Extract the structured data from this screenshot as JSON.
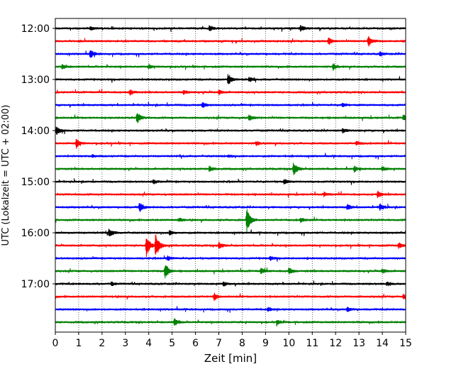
{
  "chart_data": {
    "type": "line",
    "xlabel": "Zeit  [min]",
    "ylabel": "UTC (Lokalzeit = UTC + 02:00)",
    "xlim": [
      0,
      15
    ],
    "x_ticks": [
      0,
      1,
      2,
      3,
      4,
      5,
      6,
      7,
      8,
      9,
      10,
      11,
      12,
      13,
      14,
      15
    ],
    "x_tick_labels": [
      "0",
      "1",
      "2",
      "3",
      "4",
      "5",
      "6",
      "7",
      "8",
      "9",
      "10",
      "11",
      "12",
      "13",
      "14",
      "15"
    ],
    "vertical_grid": "dotted",
    "y_ticks": [
      {
        "label": "12:00",
        "row": 0
      },
      {
        "label": "13:00",
        "row": 4
      },
      {
        "label": "14:00",
        "row": 8
      },
      {
        "label": "15:00",
        "row": 12
      },
      {
        "label": "16:00",
        "row": 16
      },
      {
        "label": "17:00",
        "row": 20
      }
    ],
    "row_colors": [
      "#000000",
      "#ff0000",
      "#0000ff",
      "#008000"
    ],
    "rows": [
      {
        "time": "12:00",
        "color": "black",
        "events": [
          {
            "t": 1.5,
            "a": 3
          },
          {
            "t": 6.6,
            "a": 4
          },
          {
            "t": 10.5,
            "a": 4
          }
        ]
      },
      {
        "time": "12:15",
        "color": "red",
        "events": [
          {
            "t": 11.7,
            "a": 5
          },
          {
            "t": 13.4,
            "a": 8
          }
        ]
      },
      {
        "time": "12:30",
        "color": "blue",
        "events": [
          {
            "t": 1.5,
            "a": 6
          },
          {
            "t": 13.9,
            "a": 3
          }
        ]
      },
      {
        "time": "12:45",
        "color": "green",
        "events": [
          {
            "t": 0.3,
            "a": 3
          },
          {
            "t": 4.0,
            "a": 3
          },
          {
            "t": 11.9,
            "a": 5
          }
        ]
      },
      {
        "time": "13:00",
        "color": "black",
        "events": [
          {
            "t": 7.4,
            "a": 8
          },
          {
            "t": 8.3,
            "a": 3
          }
        ]
      },
      {
        "time": "13:15",
        "color": "red",
        "events": [
          {
            "t": 3.2,
            "a": 4
          },
          {
            "t": 5.5,
            "a": 3
          },
          {
            "t": 7.0,
            "a": 3
          }
        ]
      },
      {
        "time": "13:30",
        "color": "blue",
        "events": [
          {
            "t": 6.3,
            "a": 4
          },
          {
            "t": 12.3,
            "a": 3
          }
        ]
      },
      {
        "time": "13:45",
        "color": "green",
        "events": [
          {
            "t": 3.5,
            "a": 8
          },
          {
            "t": 8.3,
            "a": 4
          },
          {
            "t": 14.9,
            "a": 4
          }
        ]
      },
      {
        "time": "14:00",
        "color": "black",
        "events": [
          {
            "t": 0.05,
            "a": 6
          },
          {
            "t": 12.3,
            "a": 3
          }
        ]
      },
      {
        "time": "14:15",
        "color": "red",
        "events": [
          {
            "t": 0.9,
            "a": 7
          },
          {
            "t": 8.6,
            "a": 3
          },
          {
            "t": 12.9,
            "a": 3
          }
        ]
      },
      {
        "time": "14:30",
        "color": "blue",
        "events": [
          {
            "t": 1.6,
            "a": 2
          },
          {
            "t": 7.4,
            "a": 2
          }
        ]
      },
      {
        "time": "14:45",
        "color": "green",
        "events": [
          {
            "t": 6.6,
            "a": 4
          },
          {
            "t": 10.2,
            "a": 10
          },
          {
            "t": 12.8,
            "a": 4
          },
          {
            "t": 14.0,
            "a": 3
          }
        ]
      },
      {
        "time": "15:00",
        "color": "black",
        "events": [
          {
            "t": 4.2,
            "a": 3
          },
          {
            "t": 9.8,
            "a": 3
          }
        ]
      },
      {
        "time": "15:15",
        "color": "red",
        "events": [
          {
            "t": 11.5,
            "a": 3
          },
          {
            "t": 13.8,
            "a": 5
          }
        ]
      },
      {
        "time": "15:30",
        "color": "blue",
        "events": [
          {
            "t": 3.6,
            "a": 7
          },
          {
            "t": 12.5,
            "a": 4
          },
          {
            "t": 13.9,
            "a": 5
          }
        ]
      },
      {
        "time": "15:45",
        "color": "green",
        "events": [
          {
            "t": 5.3,
            "a": 3
          },
          {
            "t": 8.2,
            "a": 17
          },
          {
            "t": 10.5,
            "a": 3
          }
        ]
      },
      {
        "time": "16:00",
        "color": "black",
        "events": [
          {
            "t": 2.3,
            "a": 7
          },
          {
            "t": 4.9,
            "a": 3
          }
        ]
      },
      {
        "time": "16:15",
        "color": "red",
        "events": [
          {
            "t": 3.9,
            "a": 18
          },
          {
            "t": 4.3,
            "a": 20
          },
          {
            "t": 7.0,
            "a": 5
          },
          {
            "t": 14.7,
            "a": 4
          }
        ]
      },
      {
        "time": "16:30",
        "color": "blue",
        "events": [
          {
            "t": 4.8,
            "a": 3
          },
          {
            "t": 9.2,
            "a": 3
          }
        ]
      },
      {
        "time": "16:45",
        "color": "green",
        "events": [
          {
            "t": 4.7,
            "a": 12
          },
          {
            "t": 8.8,
            "a": 4
          },
          {
            "t": 10.0,
            "a": 5
          },
          {
            "t": 14.0,
            "a": 3
          }
        ]
      },
      {
        "time": "17:00",
        "color": "black",
        "events": [
          {
            "t": 2.4,
            "a": 3
          },
          {
            "t": 7.2,
            "a": 3
          },
          {
            "t": 14.2,
            "a": 3
          }
        ]
      },
      {
        "time": "17:15",
        "color": "red",
        "events": [
          {
            "t": 6.8,
            "a": 5
          },
          {
            "t": 14.9,
            "a": 4
          }
        ]
      },
      {
        "time": "17:30",
        "color": "blue",
        "events": [
          {
            "t": 9.1,
            "a": 3
          },
          {
            "t": 12.5,
            "a": 3
          }
        ]
      },
      {
        "time": "17:45",
        "color": "green",
        "events": [
          {
            "t": 5.1,
            "a": 5
          },
          {
            "t": 9.5,
            "a": 3
          }
        ]
      }
    ]
  }
}
